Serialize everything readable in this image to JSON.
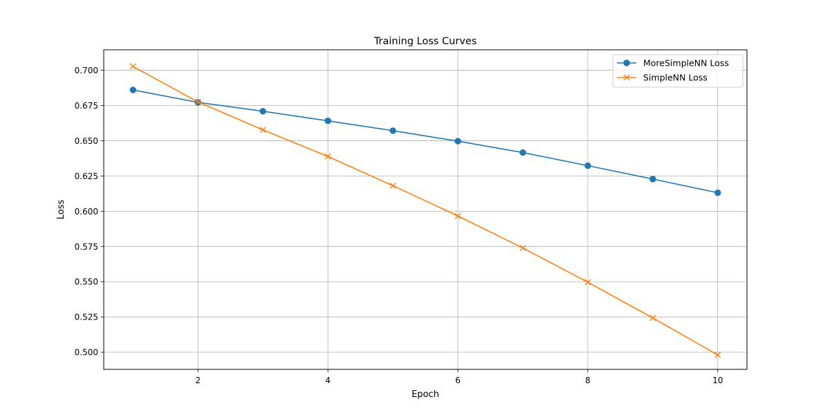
{
  "chart_data": {
    "type": "line",
    "title": "Training Loss Curves",
    "xlabel": "Epoch",
    "ylabel": "Loss",
    "xlim": [
      0.55,
      10.45
    ],
    "ylim": [
      0.4878,
      0.7145
    ],
    "x_ticks": [
      2,
      4,
      6,
      8,
      10
    ],
    "x_tick_labels": [
      "2",
      "4",
      "6",
      "8",
      "10"
    ],
    "y_ticks": [
      0.5,
      0.525,
      0.55,
      0.575,
      0.6,
      0.625,
      0.65,
      0.675,
      0.7
    ],
    "y_tick_labels": [
      "0.500",
      "0.525",
      "0.550",
      "0.575",
      "0.600",
      "0.625",
      "0.650",
      "0.675",
      "0.700"
    ],
    "grid": true,
    "legend_position": "top-right",
    "x": [
      1,
      2,
      3,
      4,
      5,
      6,
      7,
      8,
      9,
      10
    ],
    "series": [
      {
        "name": "MoreSimpleNN Loss",
        "color": "#1f77b4",
        "marker": "circle",
        "values": [
          0.686,
          0.6772,
          0.6709,
          0.6641,
          0.6571,
          0.6497,
          0.6416,
          0.6323,
          0.6228,
          0.6131
        ]
      },
      {
        "name": "SimpleNN Loss",
        "color": "#ff7f0e",
        "marker": "x",
        "values": [
          0.7027,
          0.6775,
          0.6577,
          0.6388,
          0.6181,
          0.5966,
          0.5739,
          0.5496,
          0.5243,
          0.498
        ]
      }
    ]
  }
}
